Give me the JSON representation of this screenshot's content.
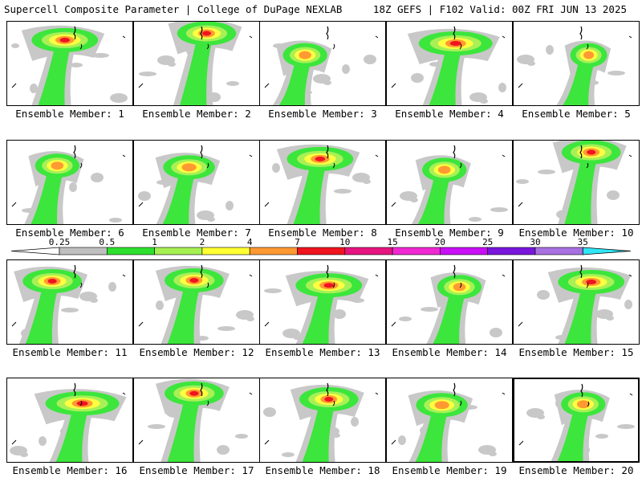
{
  "header": {
    "left_title": "Supercell Composite Parameter | College of DuPage NEXLAB",
    "right_title": "18Z GEFS | F102 Valid: 00Z FRI JUN 13 2025"
  },
  "colorbar": {
    "ticks": [
      "0.25",
      "0.5",
      "1",
      "2",
      "4",
      "7",
      "10",
      "15",
      "20",
      "25",
      "30",
      "35"
    ],
    "colors": [
      "#bfbfbf",
      "#2ee02e",
      "#a6f052",
      "#ffff33",
      "#ff9933",
      "#f0141e",
      "#e61480",
      "#f028d2",
      "#c80ff5",
      "#7a16dc",
      "#a870e0",
      "#30e6f5"
    ]
  },
  "fill_colors": {
    "gray": "#c8c8c8",
    "green": "#3ce63c",
    "lightgreen": "#a8f056",
    "yellow": "#ffff40",
    "orange": "#ff9a32",
    "red": "#f0141e"
  },
  "selected_member": 20,
  "members": [
    {
      "label": "Ensemble Member: 1",
      "hot": [
        0.46,
        0.22
      ],
      "spread": 0.9
    },
    {
      "label": "Ensemble Member: 2",
      "hot": [
        0.58,
        0.14
      ],
      "spread": 0.8
    },
    {
      "label": "Ensemble Member: 3",
      "hot": [
        0.36,
        0.4
      ],
      "spread": 0.6
    },
    {
      "label": "Ensemble Member: 4",
      "hot": [
        0.55,
        0.26
      ],
      "spread": 1.0
    },
    {
      "label": "Ensemble Member: 5",
      "hot": [
        0.6,
        0.4
      ],
      "spread": 0.5
    },
    {
      "label": "Ensemble Member: 6",
      "hot": [
        0.4,
        0.3
      ],
      "spread": 0.6
    },
    {
      "label": "Ensemble Member: 7",
      "hot": [
        0.44,
        0.32
      ],
      "spread": 0.7
    },
    {
      "label": "Ensemble Member: 8",
      "hot": [
        0.48,
        0.22
      ],
      "spread": 0.9
    },
    {
      "label": "Ensemble Member: 9",
      "hot": [
        0.46,
        0.35
      ],
      "spread": 0.6
    },
    {
      "label": "Ensemble Member: 10",
      "hot": [
        0.62,
        0.14
      ],
      "spread": 0.8
    },
    {
      "label": "Ensemble Member: 11",
      "hot": [
        0.36,
        0.25
      ],
      "spread": 0.8
    },
    {
      "label": "Ensemble Member: 12",
      "hot": [
        0.48,
        0.24
      ],
      "spread": 0.8
    },
    {
      "label": "Ensemble Member: 13",
      "hot": [
        0.55,
        0.3
      ],
      "spread": 0.9
    },
    {
      "label": "Ensemble Member: 14",
      "hot": [
        0.58,
        0.32
      ],
      "spread": 0.6
    },
    {
      "label": "Ensemble Member: 15",
      "hot": [
        0.62,
        0.26
      ],
      "spread": 0.9
    },
    {
      "label": "Ensemble Member: 16",
      "hot": [
        0.6,
        0.3
      ],
      "spread": 1.0
    },
    {
      "label": "Ensemble Member: 17",
      "hot": [
        0.48,
        0.18
      ],
      "spread": 0.8
    },
    {
      "label": "Ensemble Member: 18",
      "hot": [
        0.55,
        0.25
      ],
      "spread": 0.8
    },
    {
      "label": "Ensemble Member: 19",
      "hot": [
        0.44,
        0.32
      ],
      "spread": 0.7
    },
    {
      "label": "Ensemble Member: 20",
      "hot": [
        0.55,
        0.3
      ],
      "spread": 0.6
    }
  ]
}
